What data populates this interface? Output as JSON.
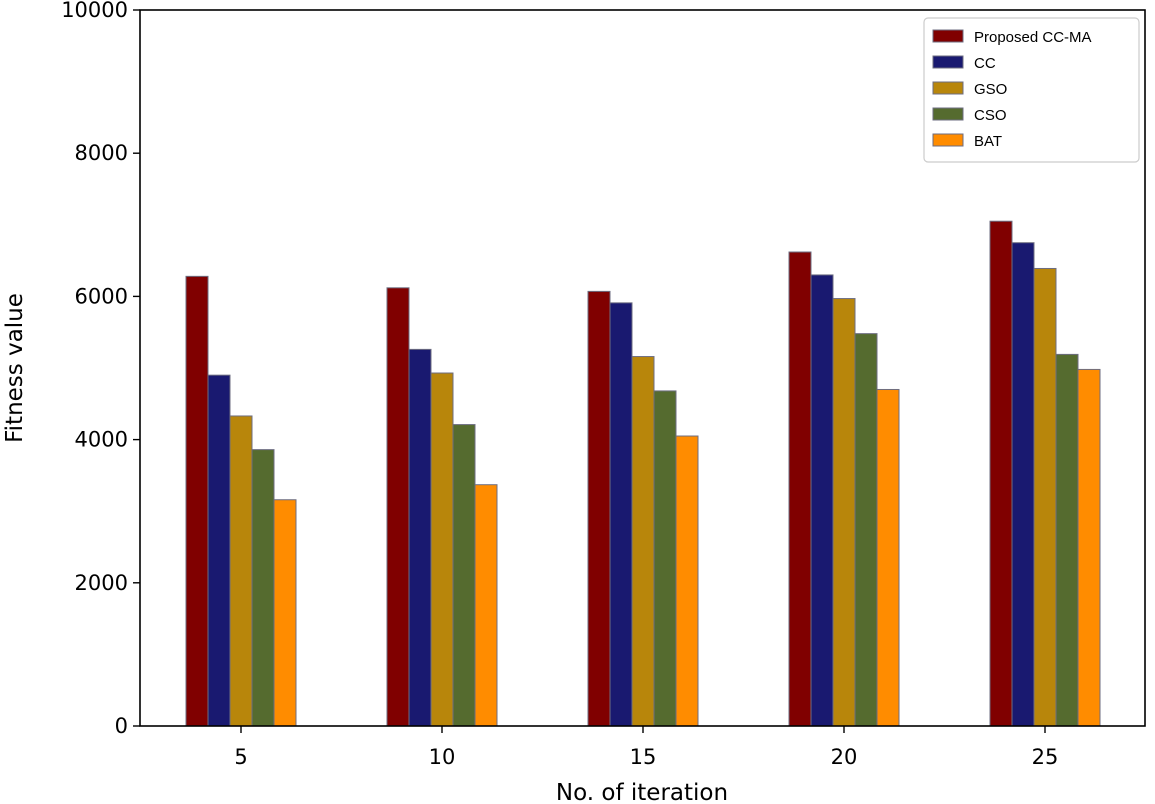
{
  "chart_data": {
    "type": "bar",
    "categories": [
      "5",
      "10",
      "15",
      "20",
      "25"
    ],
    "series": [
      {
        "name": "Proposed CC-MA",
        "color": "#800000",
        "values": [
          6280,
          6120,
          6070,
          6620,
          7050
        ]
      },
      {
        "name": "CC",
        "color": "#191970",
        "values": [
          4900,
          5260,
          5910,
          6300,
          6750
        ]
      },
      {
        "name": "GSO",
        "color": "#B8860B",
        "values": [
          4330,
          4930,
          5160,
          5970,
          6390
        ]
      },
      {
        "name": "CSO",
        "color": "#556B2F",
        "values": [
          3860,
          4210,
          4680,
          5480,
          5190
        ]
      },
      {
        "name": "BAT",
        "color": "#FF8C00",
        "values": [
          3160,
          3370,
          4050,
          4700,
          4980
        ]
      }
    ],
    "xlabel": "No. of iteration",
    "ylabel": "Fitness value",
    "ylim": [
      0,
      10000
    ],
    "yticks": [
      "0",
      "2000",
      "4000",
      "6000",
      "8000",
      "10000"
    ],
    "grid": false,
    "legend": "top-right"
  }
}
